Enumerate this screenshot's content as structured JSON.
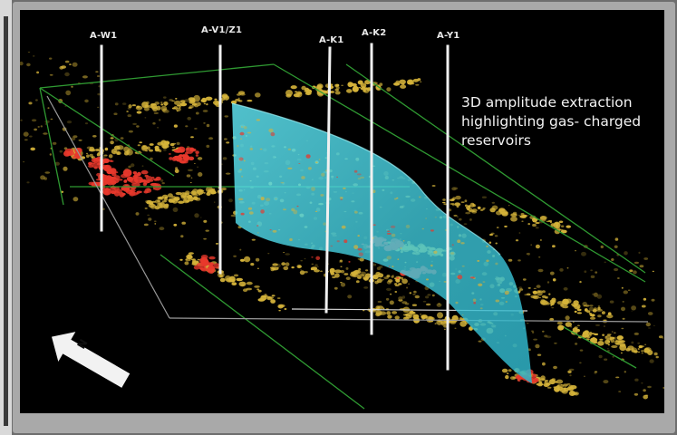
{
  "wells": [
    {
      "id": "w1",
      "label": "A-W1"
    },
    {
      "id": "v1",
      "label": "A-V1/Z1"
    },
    {
      "id": "k1",
      "label": "A-K1"
    },
    {
      "id": "k2",
      "label": "A-K2"
    },
    {
      "id": "y1",
      "label": "A-Y1"
    }
  ],
  "annotation": {
    "line1": "3D amplitude extraction",
    "line2": "highlighting gas- charged",
    "line3": "reservoirs"
  },
  "north_arrow": {
    "letter": "N"
  },
  "colors": {
    "background": "#000000",
    "frame": "#a9a9a9",
    "amplitude_high": "#e8382c",
    "amplitude_mid": "#d6b43a",
    "amplitude_low": "#6b5a1c",
    "fault_plane": "#4fd6e6",
    "bounding_box": "#2f9a32",
    "well_track": "#f0f0f0"
  }
}
